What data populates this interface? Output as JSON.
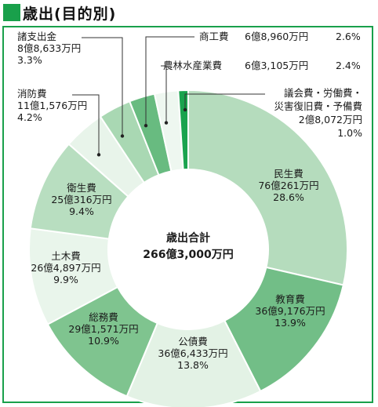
{
  "header": {
    "title": "歳出(目的別)"
  },
  "colors": {
    "accent": "#19a04b",
    "border": "#19a04b"
  },
  "chart_data": {
    "type": "pie",
    "variant": "donut",
    "title": "歳出(目的別)",
    "center_label": {
      "line1": "歳出合計",
      "line2": "266億3,000万円"
    },
    "unit": "%",
    "slices": [
      {
        "name": "民生費",
        "amount": "76億261万円",
        "percent_label": "28.6%",
        "value": 28.6,
        "color": "#b5dcbd"
      },
      {
        "name": "教育費",
        "amount": "36億9,176万円",
        "percent_label": "13.9%",
        "value": 13.9,
        "color": "#72be87"
      },
      {
        "name": "公債費",
        "amount": "36億6,433万円",
        "percent_label": "13.8%",
        "value": 13.8,
        "color": "#e3f2e5"
      },
      {
        "name": "総務費",
        "amount": "29億1,571万円",
        "percent_label": "10.9%",
        "value": 10.9,
        "color": "#7fc48f"
      },
      {
        "name": "土木費",
        "amount": "26億4,897万円",
        "percent_label": "9.9%",
        "value": 9.9,
        "color": "#e9f5eb"
      },
      {
        "name": "衛生費",
        "amount": "25億316万円",
        "percent_label": "9.4%",
        "value": 9.4,
        "color": "#b8dec0"
      },
      {
        "name": "消防費",
        "amount": "11億1,576万円",
        "percent_label": "4.2%",
        "value": 4.2,
        "color": "#e8f4ea"
      },
      {
        "name": "諸支出金",
        "amount": "8億8,633万円",
        "percent_label": "3.3%",
        "value": 3.3,
        "color": "#a9d8b3"
      },
      {
        "name": "商工費",
        "amount": "6億8,960万円",
        "percent_label": "2.6%",
        "value": 2.6,
        "color": "#68bb80"
      },
      {
        "name": "農林水産業費",
        "amount": "6億3,105万円",
        "percent_label": "2.4%",
        "value": 2.4,
        "color": "#eef7f0"
      },
      {
        "name": "議会費・労働費・災害復旧費・予備費",
        "name_line1": "議会費・労働費・",
        "name_line2": "災害復旧費・予備費",
        "amount": "2億8,072万円",
        "percent_label": "1.0%",
        "value": 1.0,
        "color": "#1aa34e"
      }
    ]
  }
}
